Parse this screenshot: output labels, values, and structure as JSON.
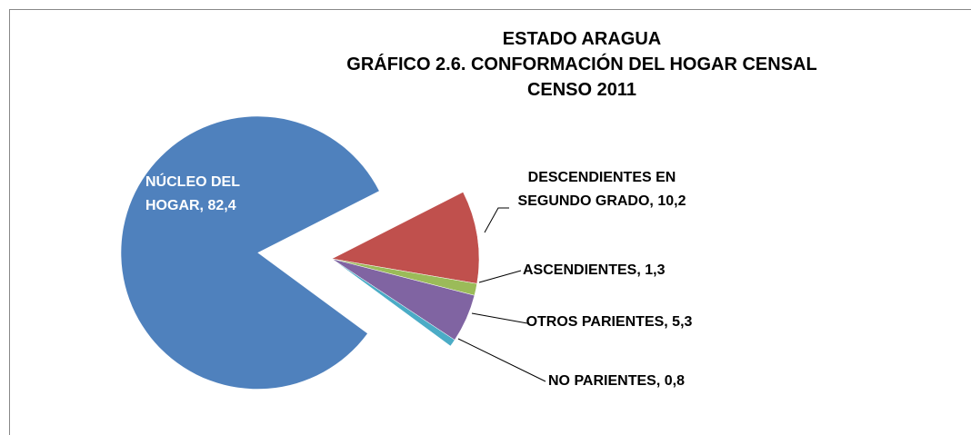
{
  "chart_data": {
    "type": "pie",
    "title": [
      "ESTADO ARAGUA",
      "GRÁFICO 2.6. CONFORMACIÓN DEL HOGAR CENSAL",
      "CENSO 2011"
    ],
    "labels": [
      "NÚCLEO DEL HOGAR, 82,4",
      "DESCENDIENTES EN SEGUNDO GRADO, 10,2",
      "ASCENDIENTES, 1,3",
      "OTROS PARIENTES, 5,3",
      "NO PARIENTES, 0,8"
    ],
    "values": [
      82.4,
      10.2,
      1.3,
      5.3,
      0.8
    ],
    "colors": [
      "#4f81bd",
      "#c0504d",
      "#9bbb59",
      "#8064a2",
      "#4bacc6"
    ]
  }
}
